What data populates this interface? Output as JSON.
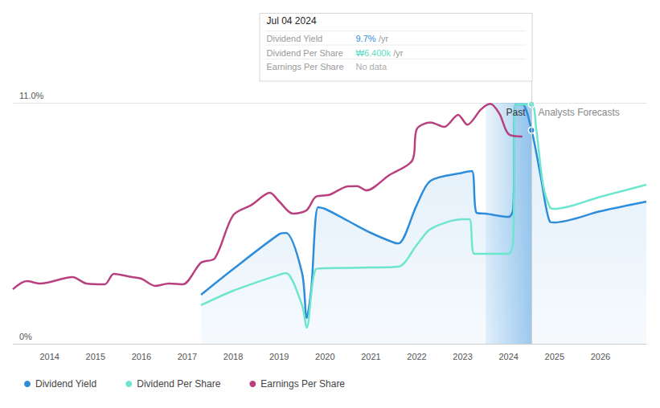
{
  "chart_data": {
    "type": "line",
    "xlim": [
      2013.2,
      2027
    ],
    "xticks": [
      2014,
      2015,
      2016,
      2017,
      2018,
      2019,
      2020,
      2021,
      2022,
      2023,
      2024,
      2025,
      2026
    ],
    "ylim": [
      0,
      11
    ],
    "yticks": [
      {
        "value": 0,
        "label": "0%"
      },
      {
        "value": 11,
        "label": "11.0%"
      }
    ],
    "grid": true,
    "legend": "bottom-left",
    "highlight_range": [
      2023.5,
      2024.5
    ],
    "annotations": [
      {
        "text": "Past"
      },
      {
        "text": "Analysts Forecasts"
      }
    ],
    "tooltip": {
      "date": "Jul 04 2024",
      "rows": [
        {
          "label": "Dividend Yield",
          "value": "9.7%",
          "unit": "/yr",
          "color": "#2e8ddb"
        },
        {
          "label": "Dividend Per Share",
          "value": "₩6.400k",
          "unit": "/yr",
          "color": "#5fdcc4"
        },
        {
          "label": "Earnings Per Share",
          "value": "No data",
          "color": "#aaaaaa"
        }
      ]
    },
    "series": [
      {
        "name": "Dividend Yield",
        "type": "area",
        "color": "#2e8ddb",
        "x": [
          2017.3,
          2018,
          2019,
          2019.15,
          2019.5,
          2019.6,
          2019.7,
          2019.85,
          2020,
          2020.5,
          2021,
          2021.5,
          2021.6,
          2022,
          2022.3,
          2023,
          2023.2,
          2023.3,
          2023.5,
          2024,
          2024.1,
          2024.15,
          2024.3,
          2024.5,
          2024.7,
          2024.9,
          2025,
          2026,
          2027
        ],
        "values": [
          2.24,
          3.41,
          5.0,
          5.06,
          3.23,
          1.17,
          2.49,
          6.23,
          6.16,
          5.61,
          5.06,
          4.62,
          4.58,
          6.34,
          7.44,
          7.81,
          7.88,
          5.98,
          5.94,
          5.79,
          6.16,
          10.93,
          10.93,
          9.75,
          7.63,
          5.57,
          5.54,
          6.05,
          6.49
        ]
      },
      {
        "name": "Dividend Per Share",
        "type": "line",
        "color": "#6ee6cf",
        "x": [
          2017.3,
          2018,
          2019,
          2019.15,
          2019.5,
          2019.6,
          2019.8,
          2020,
          2021,
          2021.6,
          2022,
          2022.3,
          2023,
          2023.15,
          2023.25,
          2023.5,
          2024,
          2024.1,
          2024.15,
          2024.5,
          2024.6,
          2024.75,
          2024.9,
          2025,
          2026,
          2027
        ],
        "values": [
          1.76,
          2.42,
          3.15,
          3.23,
          1.76,
          0.73,
          3.41,
          3.45,
          3.48,
          3.52,
          4.51,
          5.24,
          5.68,
          5.68,
          4.11,
          4.11,
          4.11,
          4.69,
          10.93,
          10.93,
          9.83,
          7.26,
          6.23,
          6.16,
          6.71,
          7.26
        ]
      },
      {
        "name": "Earnings Per Share",
        "type": "line",
        "color": "#b9407e",
        "x": [
          2013.2,
          2013.5,
          2013.8,
          2014.5,
          2014.8,
          2015.2,
          2015.4,
          2015.8,
          2016,
          2016.3,
          2016.6,
          2016.9,
          2017.3,
          2017.6,
          2018,
          2018.4,
          2018.8,
          2019,
          2019.3,
          2019.6,
          2019.8,
          2020.1,
          2020.5,
          2020.7,
          2020.9,
          2021.4,
          2021.9,
          2022,
          2022.3,
          2022.6,
          2022.9,
          2023.1,
          2023.4,
          2023.6,
          2023.8,
          2024,
          2024.3
        ],
        "values": [
          2.49,
          2.86,
          2.75,
          3.04,
          2.75,
          2.71,
          3.19,
          3.04,
          2.97,
          2.64,
          2.75,
          2.71,
          3.7,
          3.9,
          5.87,
          6.34,
          6.89,
          6.5,
          5.94,
          6.1,
          6.71,
          6.8,
          7.19,
          7.2,
          7.0,
          7.7,
          8.36,
          9.8,
          10.1,
          9.9,
          10.45,
          10.0,
          10.7,
          10.95,
          10.5,
          9.57,
          9.46
        ]
      }
    ]
  }
}
